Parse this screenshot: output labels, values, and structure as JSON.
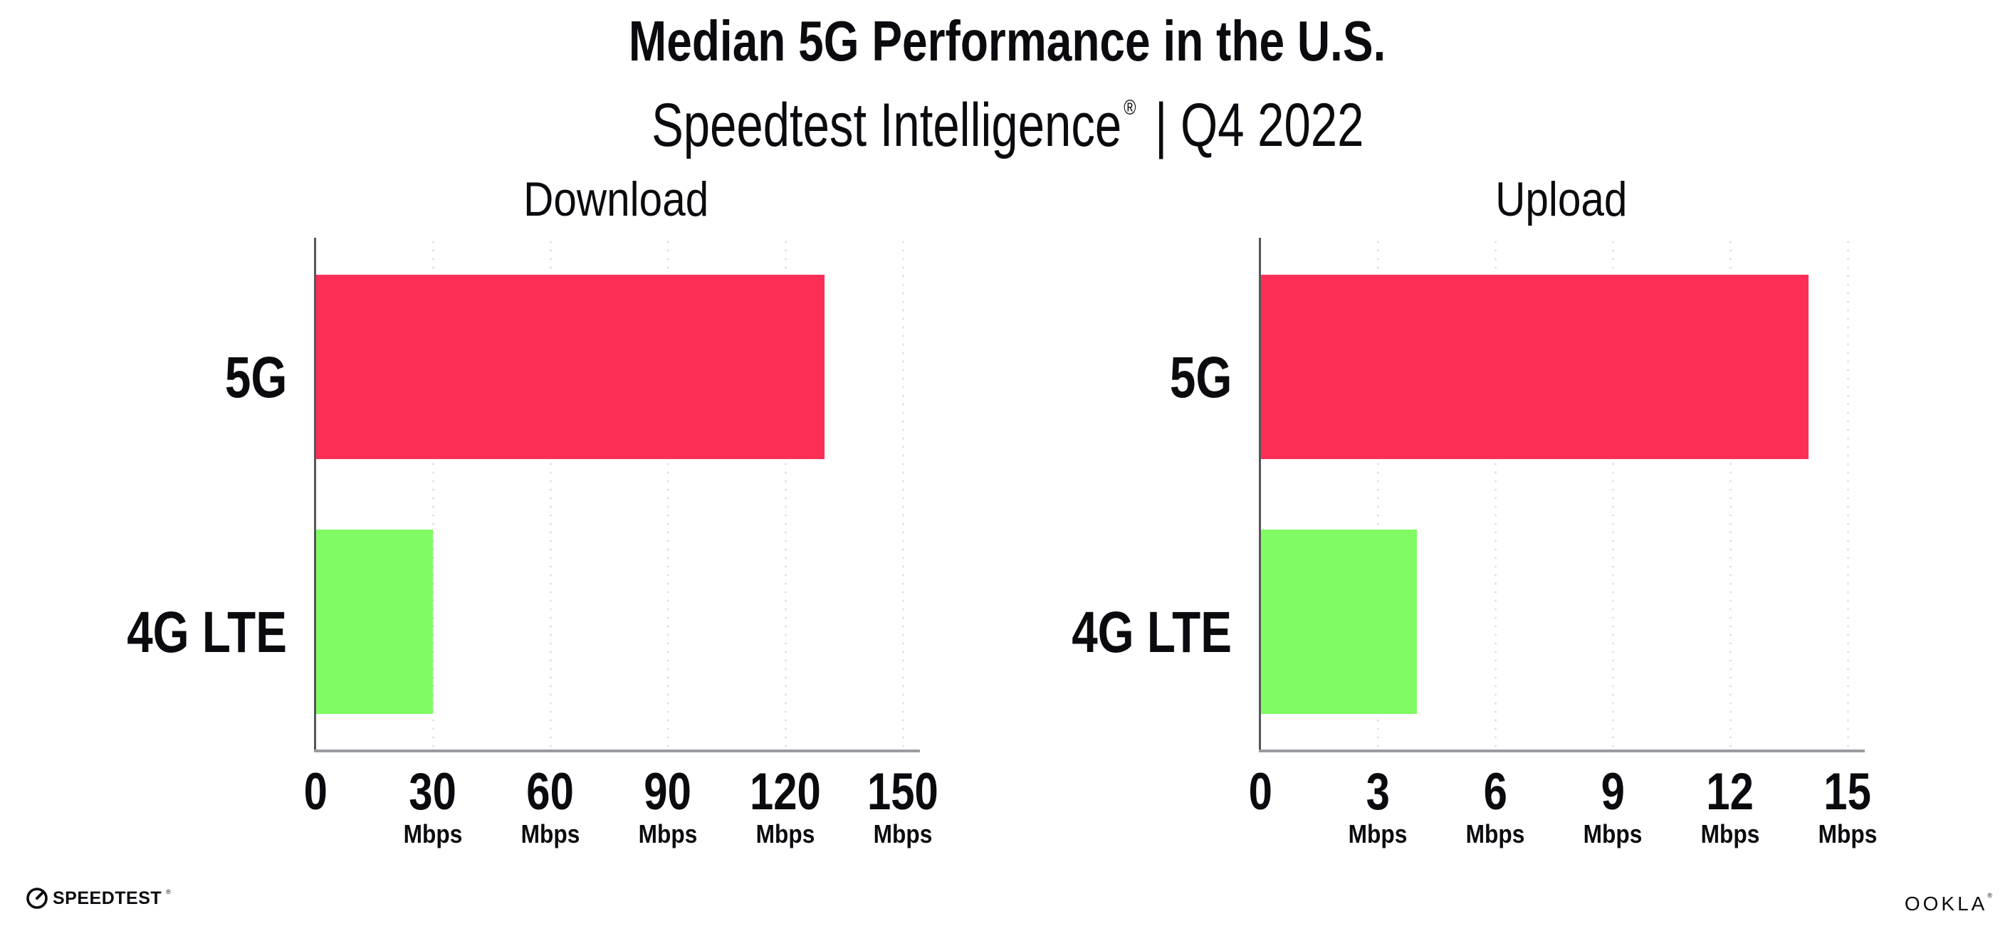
{
  "header": {
    "title": "Median 5G Performance in the U.S.",
    "subtitle_brand": "Speedtest Intelligence",
    "subtitle_mark": "®",
    "subtitle_period": " | Q4 2022"
  },
  "colors": {
    "bar_5g": "#FF2E56",
    "bar_4g_lte": "#80FB64",
    "grid_dot": "#E0E0EA",
    "axis_line": "#9B9BA1",
    "y_axis_line": "#55555C",
    "text": "#0B0B0F",
    "background": "#FFFFFF"
  },
  "chart_data": [
    {
      "type": "bar",
      "orientation": "horizontal",
      "title": "Download",
      "categories": [
        "5G",
        "4G LTE"
      ],
      "values": [
        130,
        30
      ],
      "unit": "Mbps",
      "xlim": [
        0,
        150
      ],
      "xticks": [
        0,
        30,
        60,
        90,
        120,
        150
      ],
      "bar_colors": [
        "#FF2E56",
        "#80FB64"
      ],
      "grid": "dotted-vertical",
      "legend": "none"
    },
    {
      "type": "bar",
      "orientation": "horizontal",
      "title": "Upload",
      "categories": [
        "5G",
        "4G LTE"
      ],
      "values": [
        14,
        4
      ],
      "unit": "Mbps",
      "xlim": [
        0,
        15
      ],
      "xticks": [
        0,
        3,
        6,
        9,
        12,
        15
      ],
      "bar_colors": [
        "#FF2E56",
        "#80FB64"
      ],
      "grid": "dotted-vertical",
      "legend": "none"
    }
  ],
  "footer": {
    "speedtest_label": "SPEEDTEST",
    "speedtest_mark": "®",
    "ookla_label": "OOKLA",
    "ookla_mark": "®"
  }
}
